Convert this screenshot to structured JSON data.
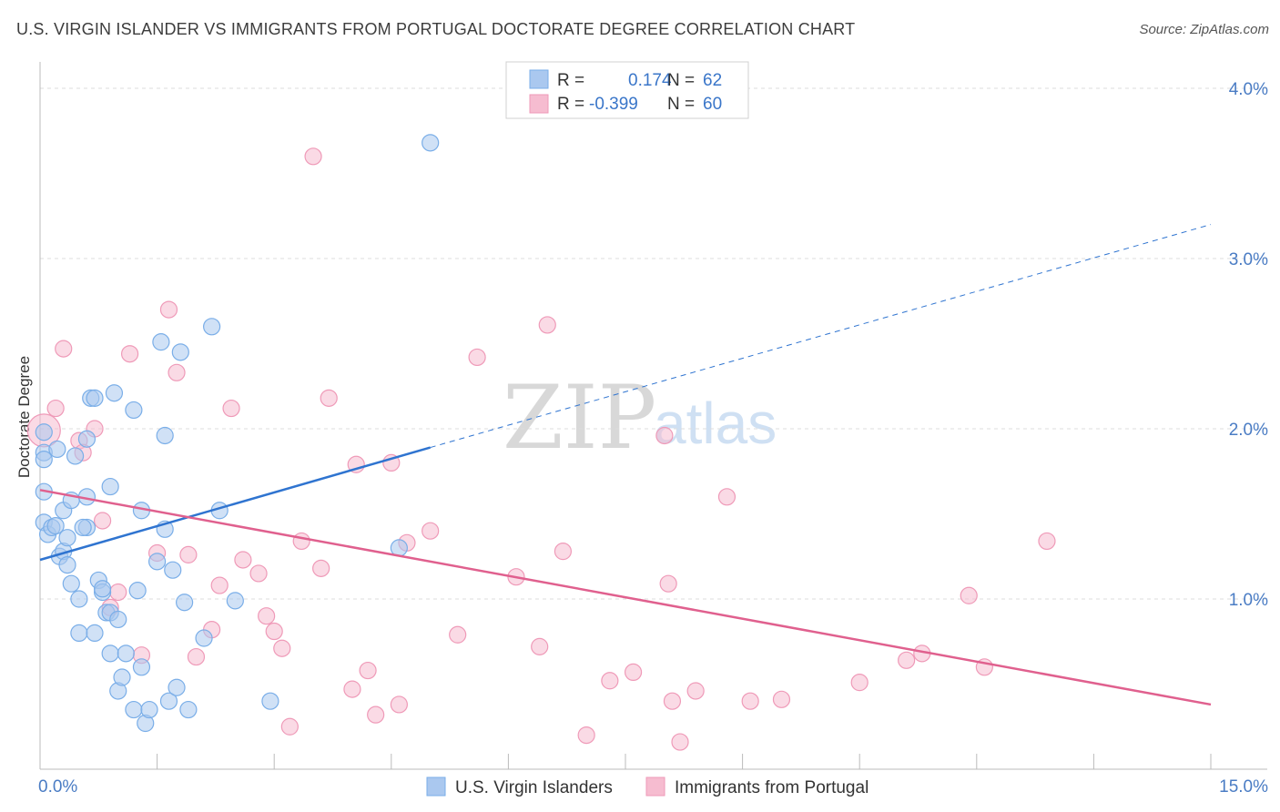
{
  "title": "U.S. VIRGIN ISLANDER VS IMMIGRANTS FROM PORTUGAL DOCTORATE DEGREE CORRELATION CHART",
  "source": "Source: ZipAtlas.com",
  "watermark": {
    "zip": "ZIP",
    "atlas": "atlas"
  },
  "legend_top": {
    "rows": [
      {
        "r_label": "R =",
        "r_value": "0.174",
        "n_label": "N =",
        "n_value": "62",
        "color": "#aac8ef"
      },
      {
        "r_label": "R =",
        "r_value": "-0.399",
        "n_label": "N =",
        "n_value": "60",
        "color": "#f6bcd0"
      }
    ]
  },
  "chart_data": {
    "type": "scatter",
    "ylabel": "Doctorate Degree",
    "xlim": [
      0,
      15
    ],
    "ylim": [
      0,
      4.1
    ],
    "x_tick_labels": [
      {
        "value": 0,
        "label": "0.0%"
      },
      {
        "value": 15,
        "label": "15.0%"
      }
    ],
    "y_tick_labels": [
      {
        "value": 1,
        "label": "1.0%"
      },
      {
        "value": 2,
        "label": "2.0%"
      },
      {
        "value": 3,
        "label": "3.0%"
      },
      {
        "value": 4,
        "label": "4.0%"
      }
    ],
    "grid": true,
    "legend_placement": "bottom-center",
    "series": [
      {
        "name": "U.S. Virgin Islanders",
        "color": "#7aaee8",
        "fill": "#aac8ef",
        "trend": {
          "x0": 0,
          "y0": 1.23,
          "x1": 5.0,
          "y1": 1.89,
          "dashed_to_x": 15,
          "dashed_to_y": 3.2,
          "color": "#2f74d0"
        },
        "points": [
          [
            0.05,
            1.98
          ],
          [
            0.05,
            1.86
          ],
          [
            0.05,
            1.82
          ],
          [
            0.05,
            1.63
          ],
          [
            0.05,
            1.45
          ],
          [
            0.1,
            1.38
          ],
          [
            0.15,
            1.42
          ],
          [
            0.2,
            1.43
          ],
          [
            0.22,
            1.88
          ],
          [
            0.25,
            1.25
          ],
          [
            0.3,
            1.52
          ],
          [
            0.3,
            1.28
          ],
          [
            0.35,
            1.36
          ],
          [
            0.35,
            1.2
          ],
          [
            0.4,
            1.09
          ],
          [
            0.4,
            1.58
          ],
          [
            0.45,
            1.84
          ],
          [
            0.5,
            0.8
          ],
          [
            0.5,
            1.0
          ],
          [
            0.6,
            1.42
          ],
          [
            0.6,
            1.94
          ],
          [
            0.6,
            1.6
          ],
          [
            0.65,
            2.18
          ],
          [
            0.7,
            2.18
          ],
          [
            0.7,
            0.8
          ],
          [
            0.75,
            1.11
          ],
          [
            0.8,
            1.04
          ],
          [
            0.8,
            1.06
          ],
          [
            0.85,
            0.92
          ],
          [
            0.9,
            0.68
          ],
          [
            0.9,
            1.66
          ],
          [
            0.9,
            0.92
          ],
          [
            0.95,
            2.21
          ],
          [
            1.0,
            0.46
          ],
          [
            1.0,
            0.88
          ],
          [
            1.05,
            0.54
          ],
          [
            1.1,
            0.68
          ],
          [
            1.2,
            2.11
          ],
          [
            1.2,
            0.35
          ],
          [
            1.25,
            1.05
          ],
          [
            1.3,
            1.52
          ],
          [
            1.3,
            0.6
          ],
          [
            1.35,
            0.27
          ],
          [
            1.4,
            0.35
          ],
          [
            1.5,
            1.22
          ],
          [
            1.55,
            2.51
          ],
          [
            1.6,
            1.96
          ],
          [
            1.6,
            1.41
          ],
          [
            1.65,
            0.4
          ],
          [
            1.7,
            1.17
          ],
          [
            1.75,
            0.48
          ],
          [
            1.8,
            2.45
          ],
          [
            1.85,
            0.98
          ],
          [
            1.9,
            0.35
          ],
          [
            2.1,
            0.77
          ],
          [
            2.2,
            2.6
          ],
          [
            2.3,
            1.52
          ],
          [
            2.5,
            0.99
          ],
          [
            2.95,
            0.4
          ],
          [
            4.6,
            1.3
          ],
          [
            5.0,
            3.68
          ],
          [
            0.55,
            1.42
          ]
        ]
      },
      {
        "name": "Immigrants from Portugal",
        "color": "#ef9ab8",
        "fill": "#f6bcd0",
        "trend": {
          "x0": 0,
          "y0": 1.64,
          "x1": 15,
          "y1": 0.38,
          "color": "#e0608e"
        },
        "points": [
          [
            0.05,
            1.99
          ],
          [
            0.2,
            2.12
          ],
          [
            0.3,
            2.47
          ],
          [
            0.5,
            1.93
          ],
          [
            0.55,
            1.86
          ],
          [
            0.7,
            2.0
          ],
          [
            0.8,
            1.46
          ],
          [
            0.9,
            0.95
          ],
          [
            1.0,
            1.04
          ],
          [
            1.15,
            2.44
          ],
          [
            1.3,
            0.67
          ],
          [
            1.5,
            1.27
          ],
          [
            1.65,
            2.7
          ],
          [
            1.75,
            2.33
          ],
          [
            1.9,
            1.26
          ],
          [
            2.0,
            0.66
          ],
          [
            2.2,
            0.82
          ],
          [
            2.3,
            1.08
          ],
          [
            2.45,
            2.12
          ],
          [
            2.6,
            1.23
          ],
          [
            2.8,
            1.15
          ],
          [
            2.9,
            0.9
          ],
          [
            3.0,
            0.81
          ],
          [
            3.1,
            0.71
          ],
          [
            3.2,
            0.25
          ],
          [
            3.35,
            1.34
          ],
          [
            3.5,
            3.6
          ],
          [
            3.6,
            1.18
          ],
          [
            3.7,
            2.18
          ],
          [
            4.0,
            0.47
          ],
          [
            4.05,
            1.79
          ],
          [
            4.2,
            0.58
          ],
          [
            4.3,
            0.32
          ],
          [
            4.5,
            1.8
          ],
          [
            4.6,
            0.38
          ],
          [
            4.7,
            1.33
          ],
          [
            5.0,
            1.4
          ],
          [
            5.35,
            0.79
          ],
          [
            5.6,
            2.42
          ],
          [
            6.1,
            1.13
          ],
          [
            6.4,
            0.72
          ],
          [
            6.5,
            2.61
          ],
          [
            6.7,
            1.28
          ],
          [
            7.3,
            0.52
          ],
          [
            7.6,
            0.57
          ],
          [
            8.0,
            1.96
          ],
          [
            8.05,
            1.09
          ],
          [
            8.1,
            0.4
          ],
          [
            8.2,
            0.16
          ],
          [
            8.4,
            0.46
          ],
          [
            8.8,
            1.6
          ],
          [
            9.1,
            0.4
          ],
          [
            9.5,
            0.41
          ],
          [
            10.5,
            0.51
          ],
          [
            11.1,
            0.64
          ],
          [
            11.3,
            0.68
          ],
          [
            11.9,
            1.02
          ],
          [
            12.1,
            0.6
          ],
          [
            12.9,
            1.34
          ],
          [
            7.0,
            0.2
          ]
        ]
      }
    ]
  }
}
